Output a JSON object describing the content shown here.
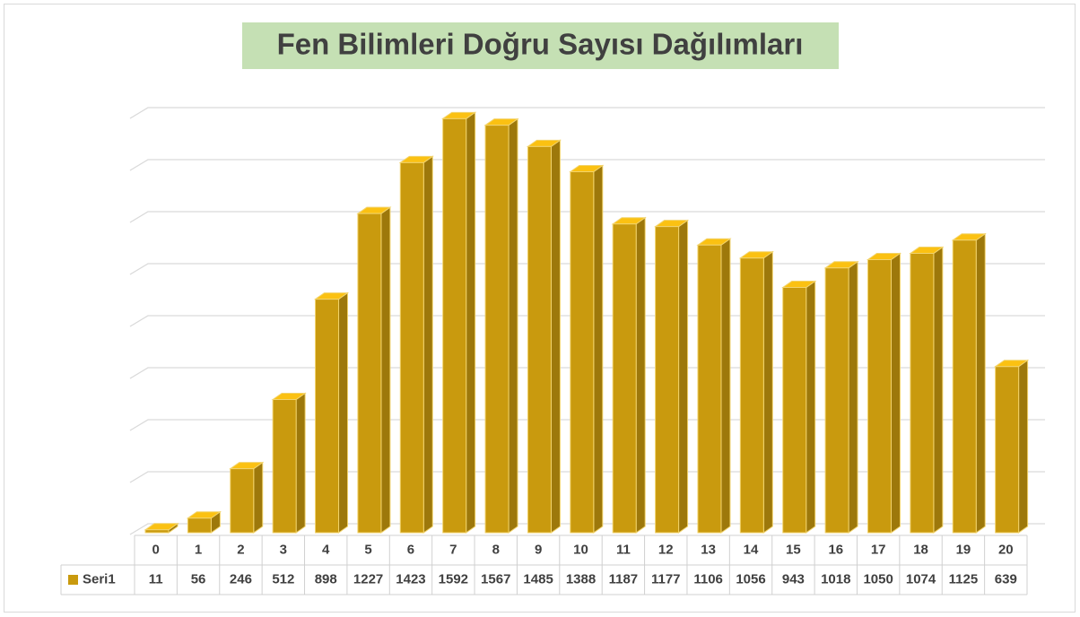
{
  "chart_data": {
    "type": "bar3d",
    "title": "Fen Bilimleri Doğru Sayısı Dağılımları",
    "categories": [
      "0",
      "1",
      "2",
      "3",
      "4",
      "5",
      "6",
      "7",
      "8",
      "9",
      "10",
      "11",
      "12",
      "13",
      "14",
      "15",
      "16",
      "17",
      "18",
      "19",
      "20"
    ],
    "series": [
      {
        "name": "Seri1",
        "color": "#c99a0e",
        "values": [
          11,
          56,
          246,
          512,
          898,
          1227,
          1423,
          1592,
          1567,
          1485,
          1388,
          1187,
          1177,
          1106,
          1056,
          943,
          1018,
          1050,
          1074,
          1125,
          639
        ]
      }
    ],
    "ylim": [
      0,
      1600
    ],
    "yticks": [
      0,
      200,
      400,
      600,
      800,
      1000,
      1200,
      1400,
      1600
    ],
    "grid": true,
    "data_table": true
  }
}
